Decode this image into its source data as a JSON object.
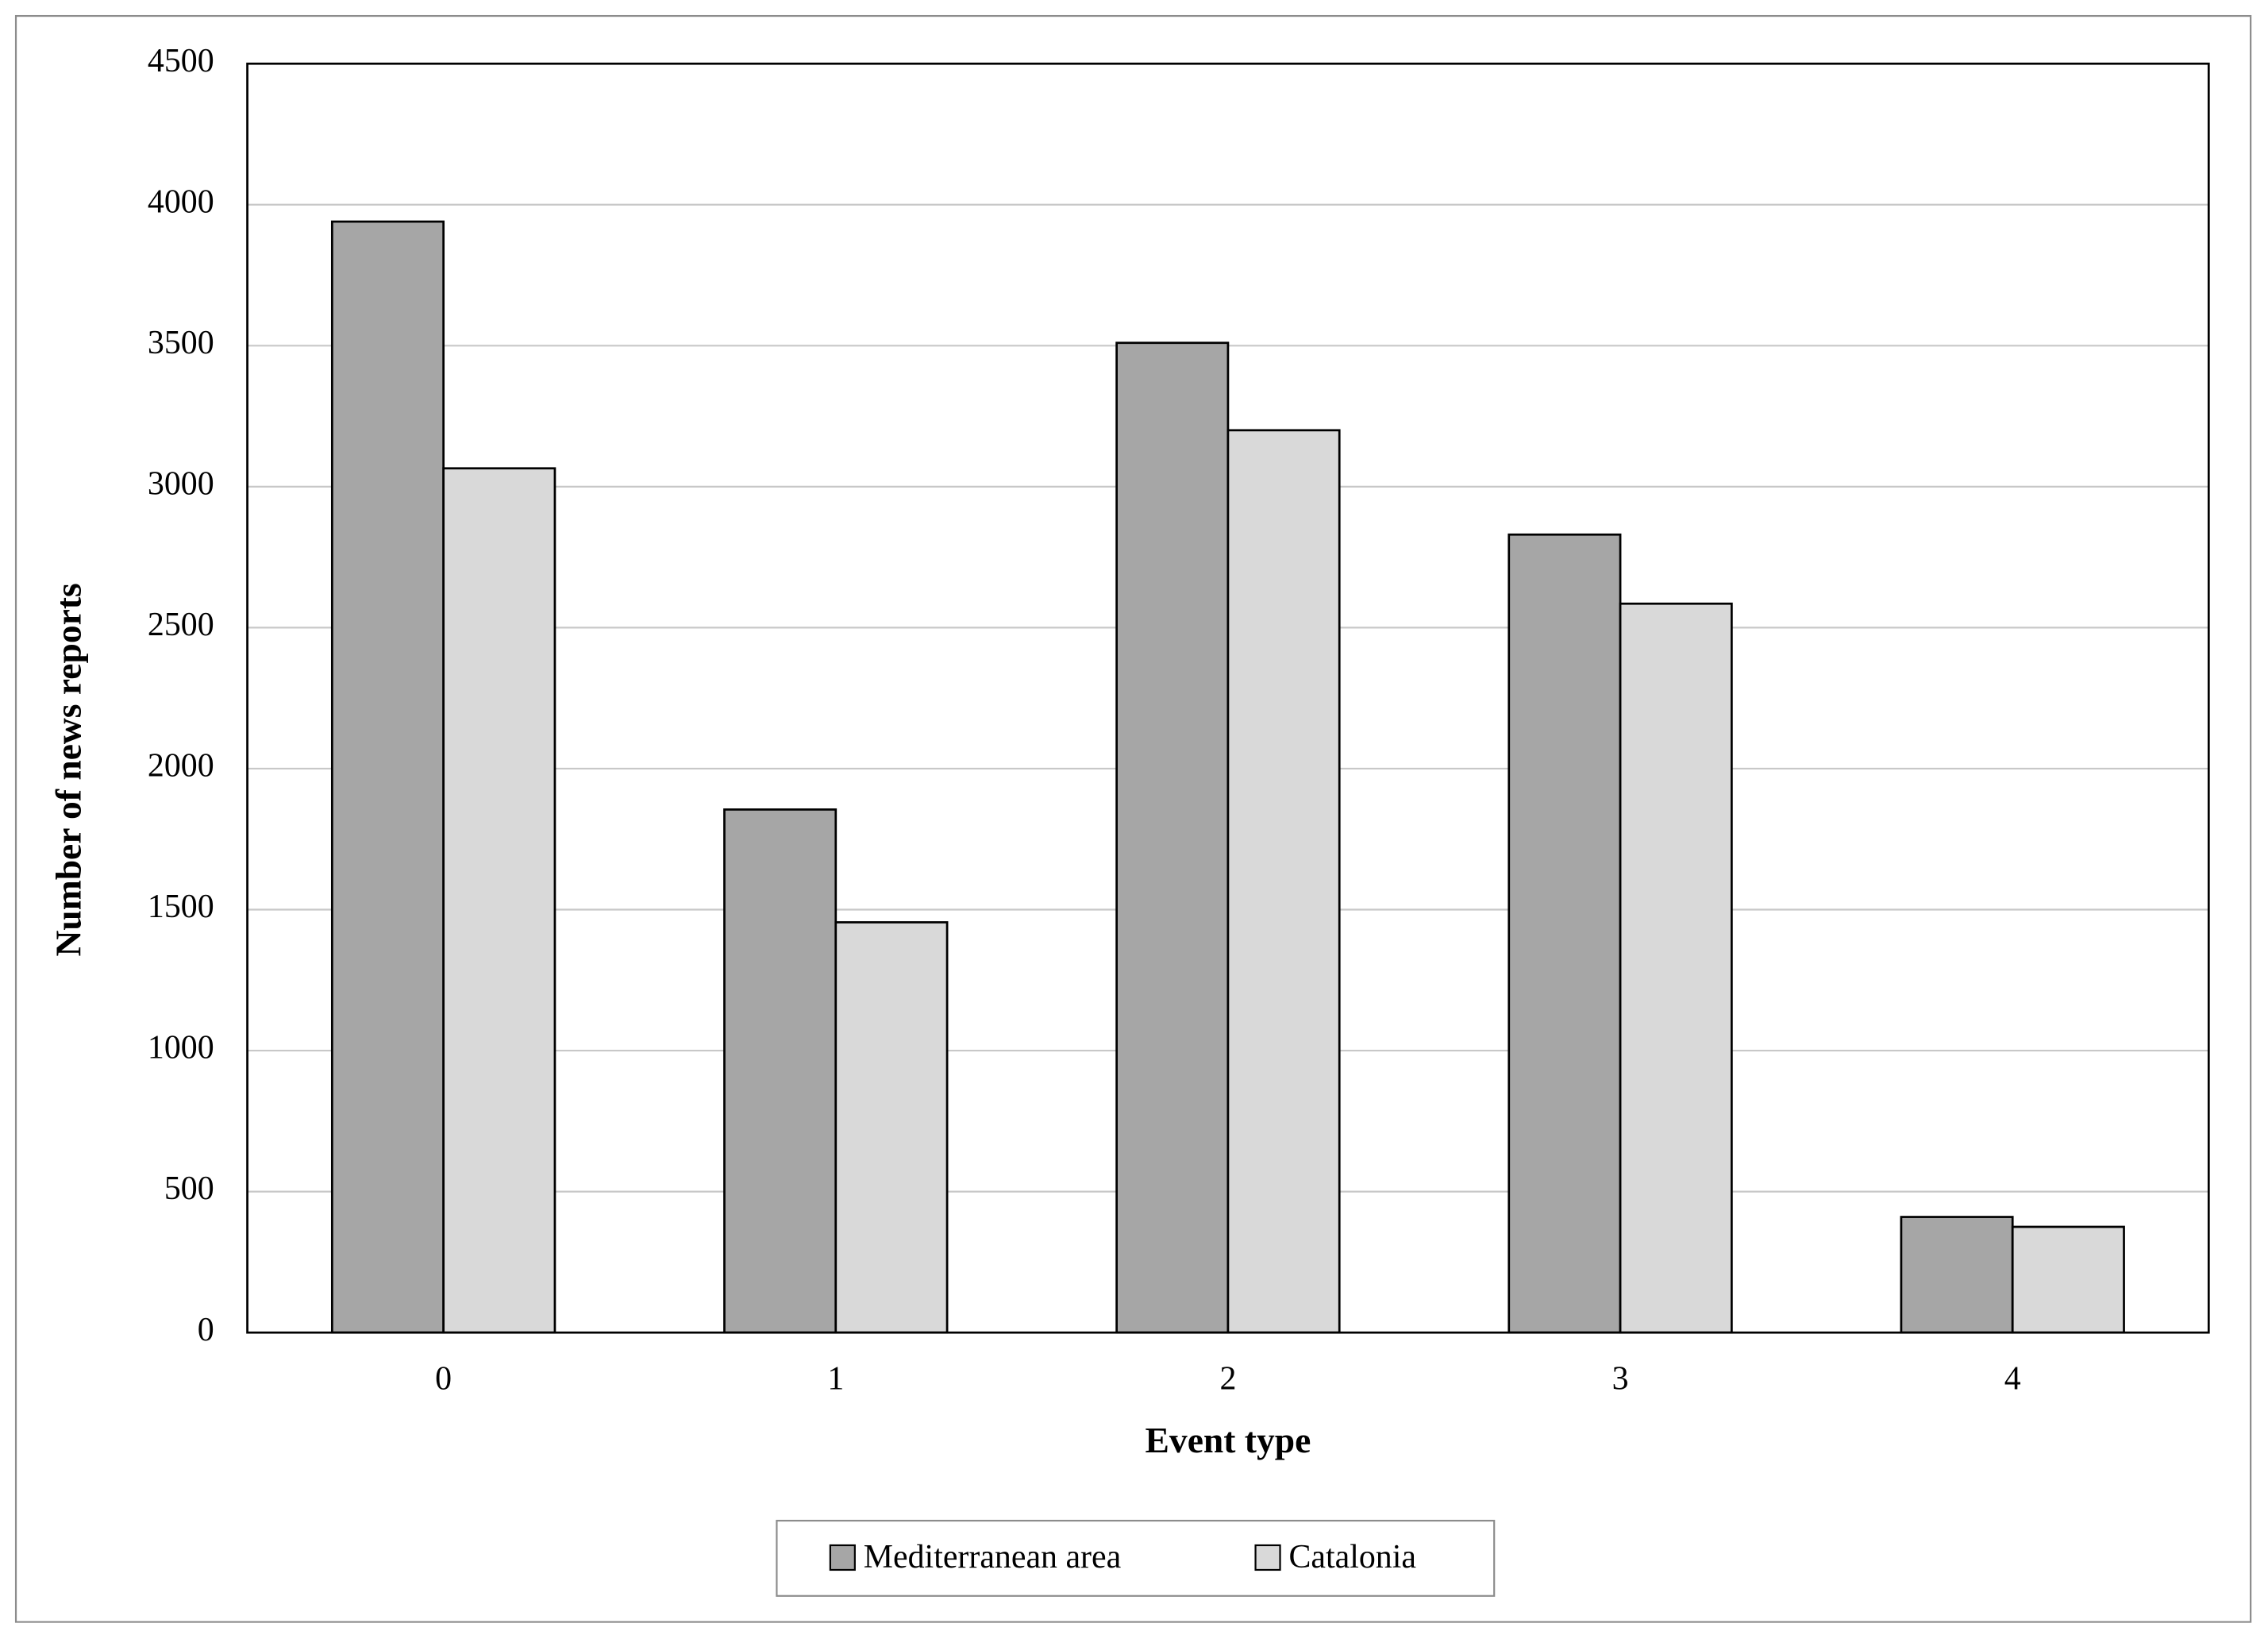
{
  "chart_data": {
    "type": "bar",
    "x_label": "Event type",
    "y_label": "Number of news reports",
    "categories": [
      "0",
      "1",
      "2",
      "3",
      "4"
    ],
    "series": [
      {
        "name": "Mediterranean area",
        "color": "#a6a6a6",
        "values": [
          3940,
          1855,
          3510,
          2830,
          410
        ]
      },
      {
        "name": "Catalonia",
        "color": "#d9d9d9",
        "values": [
          3065,
          1455,
          3200,
          2585,
          375
        ]
      }
    ],
    "ylim": [
      0,
      4500
    ],
    "yticks": [
      0,
      500,
      1000,
      1500,
      2000,
      2500,
      3000,
      3500,
      4000,
      4500
    ],
    "grid": true,
    "legend_position": "bottom"
  }
}
